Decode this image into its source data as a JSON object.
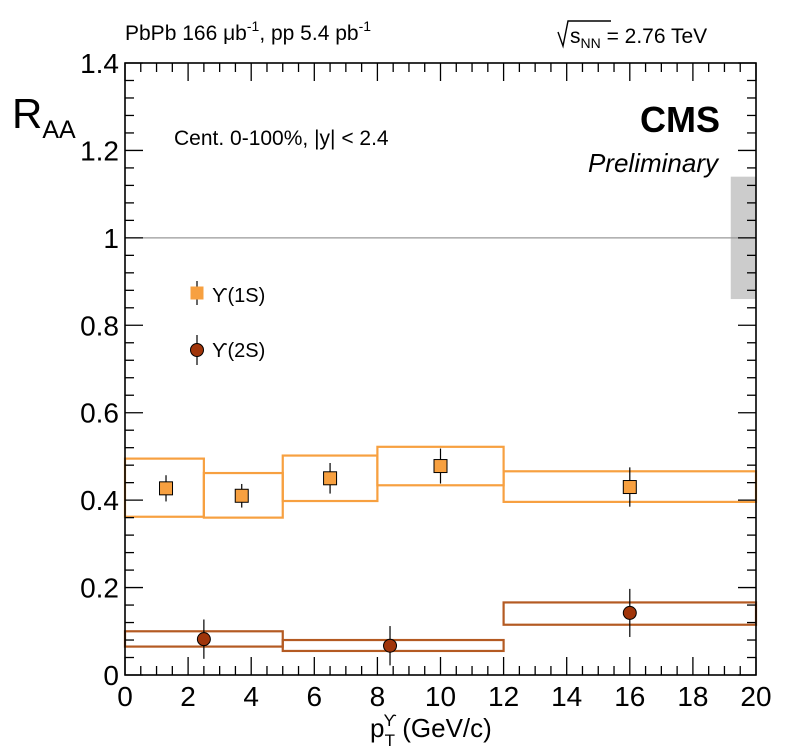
{
  "header": {
    "lumi_text": "PbPb 166 μb-1, pp 5.4 pb-1",
    "lumi_pbpb_prefix": "PbPb 166 μb",
    "lumi_pbpb_exp": "-1",
    "lumi_pp_prefix": ", pp 5.4 pb",
    "lumi_pp_exp": "-1",
    "energy_text": "√sNN = 2.76 TeV",
    "energy_s": "s",
    "energy_sub": "NN",
    "energy_value": " = 2.76 TeV"
  },
  "labels": {
    "experiment": "CMS",
    "status": "Preliminary",
    "selection": "Cent. 0-100%, |y| < 2.4"
  },
  "colors": {
    "ups1s": "#f7a040",
    "ups2s": "#a0350a",
    "ups2s_box": "#b45a22",
    "global_unc": "#cccccc",
    "reference_line": "#999999"
  },
  "chart_data": {
    "type": "scatter",
    "title": "",
    "xlabel": "pTϒ (GeV/c)",
    "xlabel_main": "p",
    "xlabel_sup": "ϒ",
    "xlabel_sub": "T",
    "xlabel_units": " (GeV/c)",
    "ylabel": "RAA",
    "ylabel_main": "R",
    "ylabel_sub": "AA",
    "xlim": [
      0,
      20
    ],
    "ylim": [
      0,
      1.4
    ],
    "xticks": [
      "0",
      "2",
      "4",
      "6",
      "8",
      "10",
      "12",
      "14",
      "16",
      "18",
      "20"
    ],
    "yticks": [
      "0",
      "0.2",
      "0.4",
      "0.6",
      "0.8",
      "1",
      "1.2",
      "1.4"
    ],
    "reference_line": 1.0,
    "global_uncertainty": {
      "x": [
        19.2,
        20
      ],
      "y": [
        0.86,
        1.14
      ]
    },
    "legend_position": "upper-left",
    "series": [
      {
        "name": "ϒ(1S)",
        "marker": "square",
        "points": [
          {
            "x": 1.3,
            "y": 0.427,
            "stat": 0.03,
            "xlow": 0,
            "xhigh": 2.5,
            "sys_low": 0.362,
            "sys_high": 0.495
          },
          {
            "x": 3.7,
            "y": 0.41,
            "stat": 0.027,
            "xlow": 2.5,
            "xhigh": 5,
            "sys_low": 0.36,
            "sys_high": 0.462
          },
          {
            "x": 6.5,
            "y": 0.45,
            "stat": 0.035,
            "xlow": 5,
            "xhigh": 8,
            "sys_low": 0.398,
            "sys_high": 0.502
          },
          {
            "x": 10,
            "y": 0.478,
            "stat": 0.04,
            "xlow": 8,
            "xhigh": 12,
            "sys_low": 0.434,
            "sys_high": 0.522
          },
          {
            "x": 16,
            "y": 0.43,
            "stat": 0.045,
            "xlow": 12,
            "xhigh": 20,
            "sys_low": 0.396,
            "sys_high": 0.466
          }
        ]
      },
      {
        "name": "ϒ(2S)",
        "marker": "circle",
        "points": [
          {
            "x": 2.5,
            "y": 0.082,
            "stat": 0.045,
            "xlow": 0,
            "xhigh": 5,
            "sys_low": 0.065,
            "sys_high": 0.1
          },
          {
            "x": 8.4,
            "y": 0.067,
            "stat": 0.045,
            "xlow": 5,
            "xhigh": 12,
            "sys_low": 0.055,
            "sys_high": 0.08
          },
          {
            "x": 16,
            "y": 0.142,
            "stat": 0.055,
            "xlow": 12,
            "xhigh": 20,
            "sys_low": 0.115,
            "sys_high": 0.166
          }
        ]
      }
    ]
  }
}
